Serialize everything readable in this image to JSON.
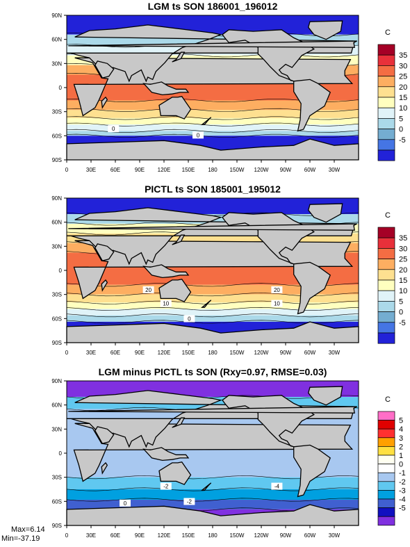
{
  "chart_data": [
    {
      "type": "heatmap",
      "title": "LGM ts SON 186001_196012",
      "colorbar_unit": "C",
      "lat_labels": [
        "90N",
        "60N",
        "30N",
        "0",
        "30S",
        "60S",
        "90S"
      ],
      "lon_labels": [
        "0",
        "30E",
        "60E",
        "90E",
        "120E",
        "150E",
        "180",
        "150W",
        "120W",
        "90W",
        "60W",
        "30W"
      ],
      "levels": [
        "35",
        "30",
        "25",
        "20",
        "15",
        "10",
        "5",
        "0",
        "-5"
      ],
      "level_colors": [
        "#a50026",
        "#e8303a",
        "#f46d43",
        "#fdae61",
        "#fee090",
        "#ffffbf",
        "#e0f3f8",
        "#abd9e9",
        "#74add1",
        "#4575e4",
        "#2222d8"
      ],
      "zonal_bands": [
        {
          "lat_top": 90,
          "lat_bottom": 66,
          "value": -8
        },
        {
          "lat_top": 66,
          "lat_bottom": 52,
          "value": 2
        },
        {
          "lat_top": 52,
          "lat_bottom": 40,
          "value": 8
        },
        {
          "lat_top": 40,
          "lat_bottom": 28,
          "value": 14
        },
        {
          "lat_top": 28,
          "lat_bottom": 16,
          "value": 20
        },
        {
          "lat_top": 16,
          "lat_bottom": -16,
          "value": 26
        },
        {
          "lat_top": -16,
          "lat_bottom": -28,
          "value": 22
        },
        {
          "lat_top": -28,
          "lat_bottom": -38,
          "value": 16
        },
        {
          "lat_top": -38,
          "lat_bottom": -46,
          "value": 11
        },
        {
          "lat_top": -46,
          "lat_bottom": -54,
          "value": 6
        },
        {
          "lat_top": -54,
          "lat_bottom": -60,
          "value": 1
        },
        {
          "lat_top": -60,
          "lat_bottom": -90,
          "value": -7
        }
      ],
      "contour_labels": [
        "0",
        "0"
      ],
      "stats": null
    },
    {
      "type": "heatmap",
      "title": "PICTL ts SON 185001_195012",
      "colorbar_unit": "C",
      "lat_labels": [
        "90N",
        "60N",
        "30N",
        "0",
        "30S",
        "60S",
        "90S"
      ],
      "lon_labels": [
        "0",
        "30E",
        "60E",
        "90E",
        "120E",
        "150E",
        "180",
        "150W",
        "120W",
        "90W",
        "60W",
        "30W"
      ],
      "levels": [
        "35",
        "30",
        "25",
        "20",
        "15",
        "10",
        "5",
        "0",
        "-5"
      ],
      "level_colors": [
        "#a50026",
        "#e8303a",
        "#f46d43",
        "#fdae61",
        "#fee090",
        "#ffffbf",
        "#e0f3f8",
        "#abd9e9",
        "#74add1",
        "#4575e4",
        "#2222d8"
      ],
      "zonal_bands": [
        {
          "lat_top": 90,
          "lat_bottom": 70,
          "value": -6
        },
        {
          "lat_top": 70,
          "lat_bottom": 58,
          "value": 4
        },
        {
          "lat_top": 58,
          "lat_bottom": 46,
          "value": 11
        },
        {
          "lat_top": 46,
          "lat_bottom": 34,
          "value": 17
        },
        {
          "lat_top": 34,
          "lat_bottom": 22,
          "value": 22
        },
        {
          "lat_top": 22,
          "lat_bottom": -18,
          "value": 27
        },
        {
          "lat_top": -18,
          "lat_bottom": -30,
          "value": 23
        },
        {
          "lat_top": -30,
          "lat_bottom": -40,
          "value": 17
        },
        {
          "lat_top": -40,
          "lat_bottom": -48,
          "value": 11
        },
        {
          "lat_top": -48,
          "lat_bottom": -56,
          "value": 6
        },
        {
          "lat_top": -56,
          "lat_bottom": -64,
          "value": 1
        },
        {
          "lat_top": -64,
          "lat_bottom": -90,
          "value": -6
        }
      ],
      "contour_labels": [
        "20",
        "20",
        "10",
        "10",
        "0"
      ],
      "stats": null
    },
    {
      "type": "heatmap",
      "title": "LGM minus PICTL ts SON (Rxy=0.97, RMSE=0.03)",
      "colorbar_unit": "C",
      "lat_labels": [
        "90N",
        "60N",
        "30N",
        "0",
        "30S",
        "60S",
        "90S"
      ],
      "lon_labels": [
        "0",
        "30E",
        "60E",
        "90E",
        "120E",
        "150E",
        "180",
        "150W",
        "120W",
        "90W",
        "60W",
        "30W"
      ],
      "levels": [
        "5",
        "4",
        "3",
        "2",
        "1",
        "0",
        "-1",
        "-2",
        "-3",
        "-4",
        "-5"
      ],
      "level_colors": [
        "#ff6ec7",
        "#e00000",
        "#ff3030",
        "#ffa000",
        "#ffe040",
        "#fffff0",
        "#ffffff",
        "#a8c8f0",
        "#60c8f0",
        "#00a0e0",
        "#4060d0",
        "#1010c0",
        "#8030e0"
      ],
      "zonal_bands": [
        {
          "lat_top": 90,
          "lat_bottom": 70,
          "value": -6
        },
        {
          "lat_top": 70,
          "lat_bottom": 55,
          "value": -2.5
        },
        {
          "lat_top": 55,
          "lat_bottom": -30,
          "value": -1.5
        },
        {
          "lat_top": -30,
          "lat_bottom": -45,
          "value": -2.5
        },
        {
          "lat_top": -45,
          "lat_bottom": -58,
          "value": -3.5
        },
        {
          "lat_top": -58,
          "lat_bottom": -70,
          "value": -5
        },
        {
          "lat_top": -70,
          "lat_bottom": -90,
          "value": -6
        }
      ],
      "contour_labels": [
        "-4",
        "-2",
        "-2",
        "0"
      ],
      "stats": {
        "max_label": "Max=6.14",
        "min_label": "Min=-37.19"
      }
    }
  ]
}
